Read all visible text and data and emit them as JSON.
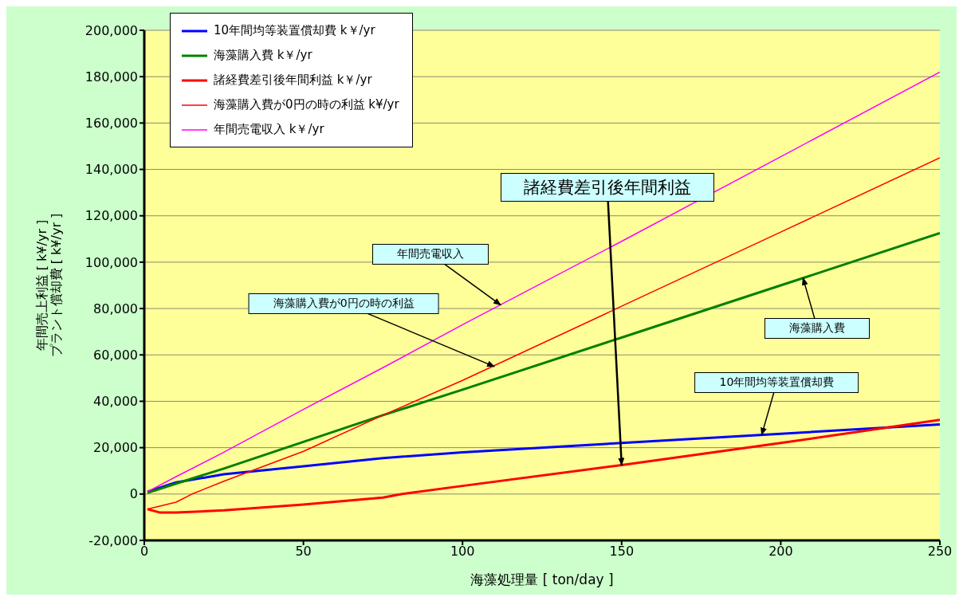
{
  "chart_data": {
    "type": "line",
    "xlabel": "海藻処理量 [ ton/day ]",
    "ylabel": "年間売上利益 [ k¥/yr ]\nプラント償却費 [ k¥/yr ]",
    "xlim": [
      0,
      250
    ],
    "xticks": [
      0,
      50,
      100,
      150,
      200,
      250
    ],
    "ylim": [
      -20000,
      200000
    ],
    "yticks": [
      {
        "value": -20000,
        "label": "-20,000"
      },
      0,
      {
        "value": 20000,
        "label": "20,000"
      },
      {
        "value": 40000,
        "label": "40,000"
      },
      {
        "value": 60000,
        "label": "60,000"
      },
      {
        "value": 80000,
        "label": "80,000"
      },
      {
        "value": 100000,
        "label": "100,000"
      },
      {
        "value": 120000,
        "label": "120,000"
      },
      {
        "value": 140000,
        "label": "140,000"
      },
      {
        "value": 160000,
        "label": "160,000"
      },
      {
        "value": 180000,
        "label": "180,000"
      },
      {
        "value": 200000,
        "label": "200,000"
      }
    ],
    "grid": "y",
    "legend": "top left",
    "marker": "none",
    "line_style": "solid",
    "series": [
      {
        "name": "10年間均等装置償却費 k￥/yr",
        "color": "#0000ff",
        "x": [
          1,
          10,
          25,
          50,
          75,
          100,
          150,
          200,
          250
        ],
        "values": [
          1000,
          5000,
          8500,
          12000,
          15500,
          18000,
          22000,
          26000,
          30000
        ]
      },
      {
        "name": "海藻購入費 k￥/yr",
        "color": "#008000",
        "x": [
          1,
          10,
          25,
          50,
          75,
          100,
          150,
          200,
          250
        ],
        "values": [
          500,
          4500,
          11000,
          22500,
          34000,
          45000,
          67500,
          90000,
          112500
        ]
      },
      {
        "name": "諸経費差引後年間利益 k￥/yr",
        "color": "#ff0000",
        "x": [
          1,
          5,
          10,
          25,
          50,
          75,
          81,
          100,
          150,
          200,
          250
        ],
        "values": [
          -6500,
          -8000,
          -8000,
          -7000,
          -4500,
          -1500,
          0,
          3500,
          12500,
          22000,
          32000
        ]
      },
      {
        "name": "海藻購入費が0円の時の利益 k¥/yr",
        "color": "#ff0000",
        "x": [
          1,
          10,
          15,
          25,
          50,
          75,
          100,
          150,
          200,
          250
        ],
        "values": [
          -6500,
          -3500,
          0,
          5500,
          18400,
          34000,
          49000,
          81000,
          113000,
          145000
        ]
      },
      {
        "name": "年間売電収入 k￥/yr",
        "color": "#ff00ff",
        "x": [
          1,
          10,
          25,
          50,
          75,
          100,
          150,
          200,
          250
        ],
        "values": [
          1000,
          7500,
          18000,
          36500,
          54500,
          73000,
          109000,
          145500,
          182000
        ]
      }
    ],
    "annotations": [
      {
        "text": "年間売電収入",
        "x": 112,
        "y": 81500
      },
      {
        "text": "海藻購入費が0円の時の利益",
        "x": 110,
        "y": 55000
      },
      {
        "text": "海藻購入費",
        "x": 207,
        "y": 93150
      },
      {
        "text": "10年間均等装置償却費",
        "x": 194,
        "y": 25500
      },
      {
        "text": "諸経費差引後年間利益",
        "x": 150,
        "y": 12500
      }
    ]
  }
}
